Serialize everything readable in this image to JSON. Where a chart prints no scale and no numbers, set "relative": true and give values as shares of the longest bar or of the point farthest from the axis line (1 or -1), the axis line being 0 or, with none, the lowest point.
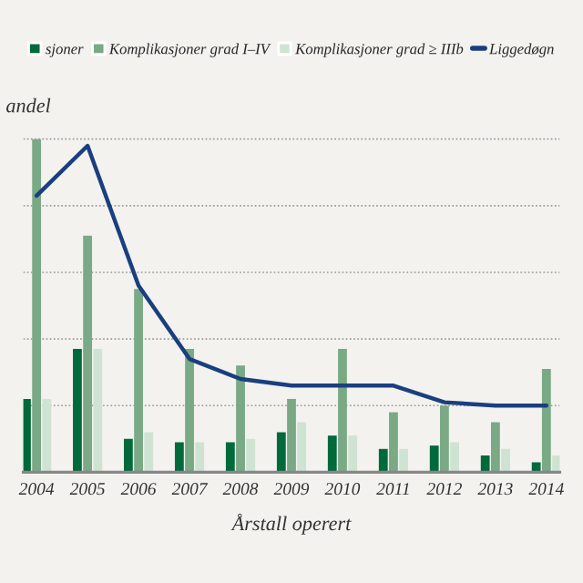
{
  "chart_data": {
    "type": "bar",
    "relative": true,
    "ylabel": "andel",
    "xlabel": "Årstall operert",
    "categories": [
      "2004",
      "2005",
      "2006",
      "2007",
      "2008",
      "2009",
      "2010",
      "2011",
      "2012",
      "2013",
      "2014"
    ],
    "series": [
      {
        "name": "sjoner",
        "color": "#006a3b",
        "values": [
          0.22,
          0.37,
          0.1,
          0.09,
          0.09,
          0.12,
          0.11,
          0.07,
          0.08,
          0.05,
          0.03
        ]
      },
      {
        "name": "Komplikasjoner grad I–IV",
        "color": "#7aa985",
        "values": [
          1,
          0.71,
          0.55,
          0.37,
          0.32,
          0.22,
          0.37,
          0.18,
          0.2,
          0.15,
          0.31
        ]
      },
      {
        "name": "Komplikasjoner grad ≥ IIIb",
        "color": "#cfe3d3",
        "values": [
          0.22,
          0.37,
          0.12,
          0.09,
          0.1,
          0.15,
          0.11,
          0.07,
          0.09,
          0.07,
          0.05
        ]
      },
      {
        "name": "Liggedøgn",
        "type": "line",
        "color": "#1a3f7f",
        "values": [
          0.83,
          0.98,
          0.56,
          0.34,
          0.28,
          0.26,
          0.26,
          0.26,
          0.21,
          0.2,
          0.2
        ]
      }
    ],
    "grid": "y",
    "legend": "top",
    "marker": "none",
    "line_style": "solid"
  }
}
